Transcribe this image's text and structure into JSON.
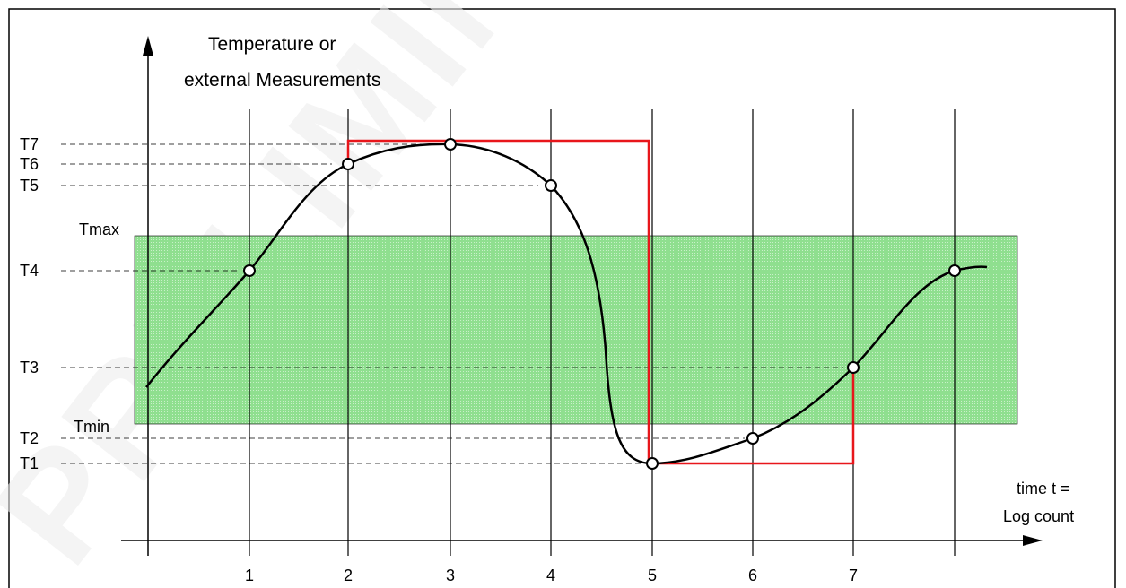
{
  "y_axis_title": [
    "Temperature  or",
    "external Measurements"
  ],
  "x_axis_title": [
    "time t =",
    "Log count"
  ],
  "levels": [
    {
      "name": "T7"
    },
    {
      "name": "T6"
    },
    {
      "name": "T5"
    },
    {
      "name": "T4"
    },
    {
      "name": "T3"
    },
    {
      "name": "T2"
    },
    {
      "name": "T1"
    }
  ],
  "band": {
    "upper_label": "Tmax",
    "lower_label": "Tmin",
    "color": "#8fdf8f"
  },
  "x_ticks": [
    "1",
    "2",
    "3",
    "4",
    "5",
    "6",
    "7"
  ],
  "watermark": "PRELIMINARY",
  "colors": {
    "curve": "#000000",
    "alarm_path": "#e8161b",
    "band": "#8fdf8f"
  }
}
